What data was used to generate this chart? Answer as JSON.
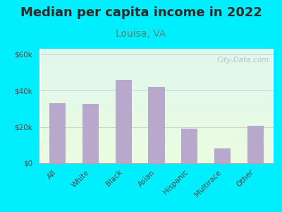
{
  "title": "Median per capita income in 2022",
  "subtitle": "Louisa, VA",
  "categories": [
    "All",
    "White",
    "Black",
    "Asian",
    "Hispanic",
    "Multirace",
    "Other"
  ],
  "values": [
    33000,
    32500,
    46000,
    42000,
    19000,
    8000,
    20500
  ],
  "bar_color": "#b8a8cc",
  "background_outer": "#00eeff",
  "title_color": "#2a2a2a",
  "subtitle_color": "#4a8a7a",
  "tick_color": "#4a4a4a",
  "ylim": [
    0,
    63000
  ],
  "yticks": [
    0,
    20000,
    40000,
    60000
  ],
  "ytick_labels": [
    "$0",
    "$20k",
    "$40k",
    "$60k"
  ],
  "watermark": "City-Data.com",
  "title_fontsize": 13,
  "subtitle_fontsize": 10
}
